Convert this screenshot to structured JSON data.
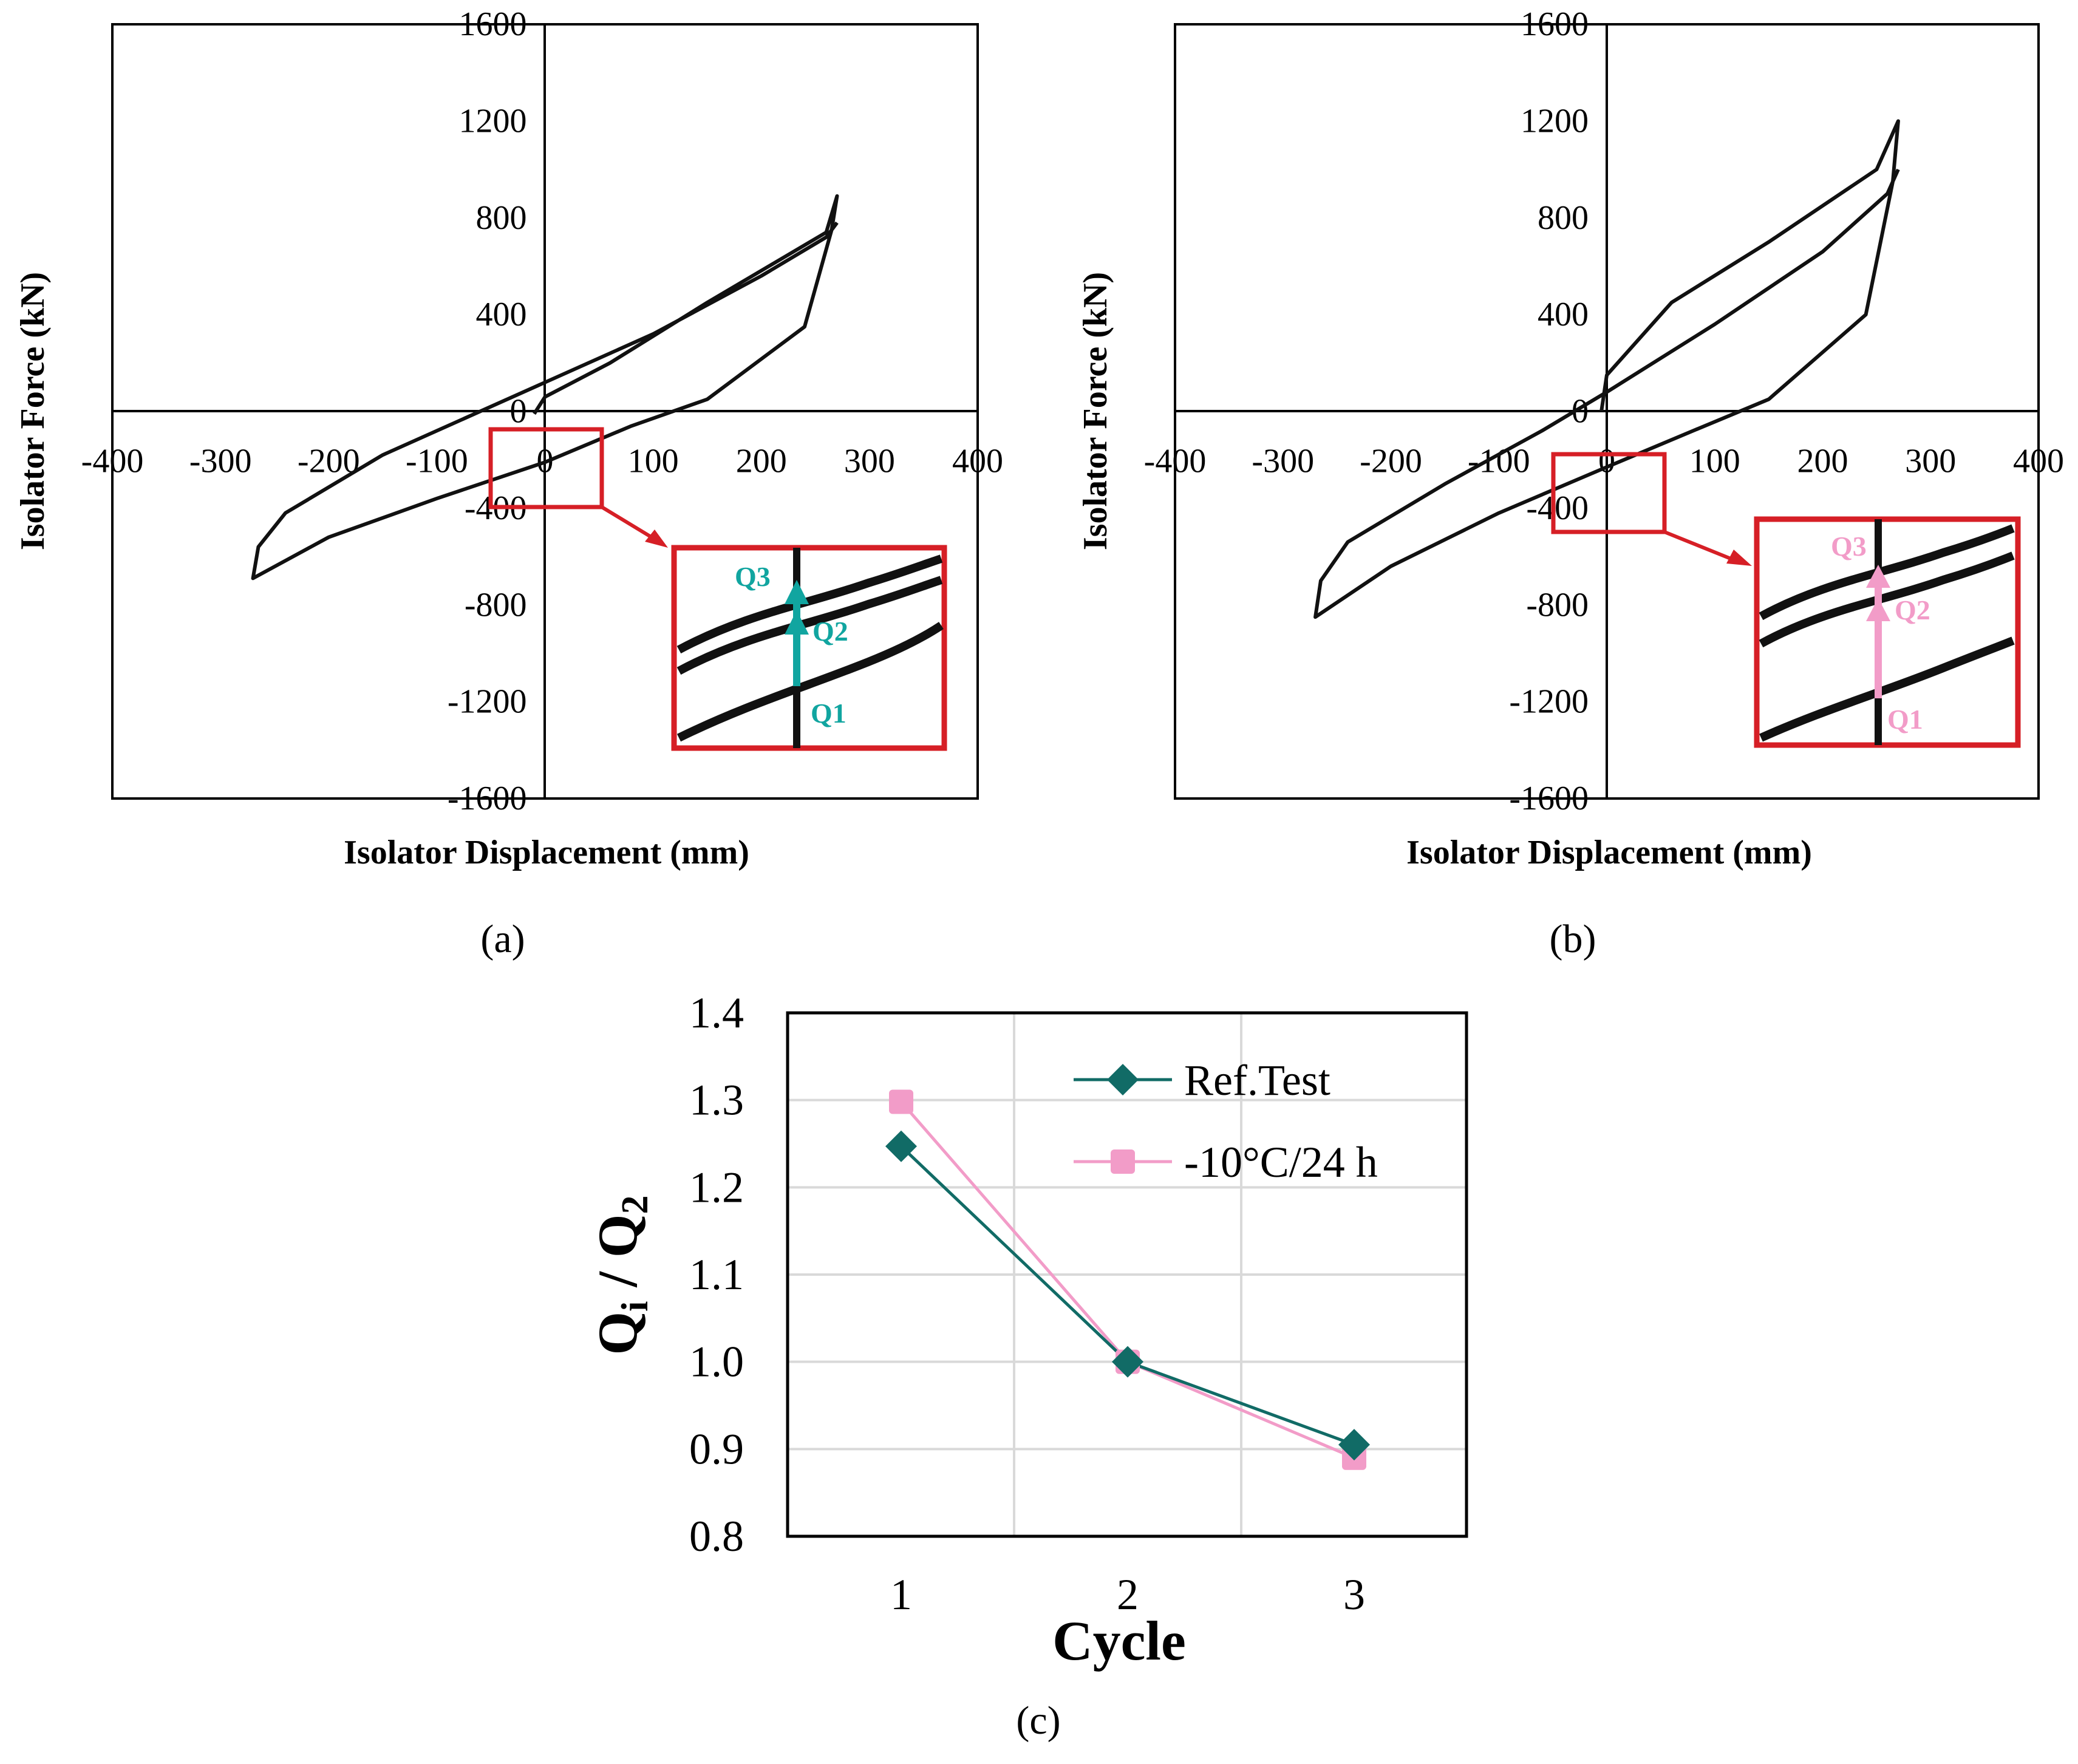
{
  "colors": {
    "ref_test": "#116b66",
    "cold_test": "#f29cc8",
    "inset_border": "#d61f26",
    "curve": "#111111"
  },
  "chart_data": [
    {
      "type": "line",
      "panel_label": "(a)",
      "title": "",
      "xlabel": "Isolator Displacement (mm)",
      "ylabel": "Isolator Force (kN)",
      "xlim": [
        -400,
        400
      ],
      "ylim": [
        -1600,
        1600
      ],
      "x_ticks": [
        "-400",
        "-300",
        "-200",
        "-100",
        "0",
        "100",
        "200",
        "300",
        "400"
      ],
      "y_ticks": [
        "1600",
        "1200",
        "800",
        "400",
        "0",
        "-400",
        "-800",
        "-1200",
        "-1600"
      ],
      "series": [
        {
          "name": "hysteresis loop",
          "x": [
            -10,
            0,
            60,
            150,
            260,
            270,
            265,
            240,
            150,
            80,
            0,
            -100,
            -200,
            -270,
            -265,
            -240,
            -150,
            -60,
            0,
            100,
            200,
            260,
            270
          ],
          "y": [
            -10,
            60,
            200,
            450,
            740,
            890,
            750,
            350,
            50,
            -60,
            -210,
            -360,
            -520,
            -690,
            -560,
            -420,
            -180,
            0,
            120,
            320,
            560,
            720,
            780
          ]
        }
      ],
      "inset_labels": [
        "Q3",
        "Q2",
        "Q1"
      ]
    },
    {
      "type": "line",
      "panel_label": "(b)",
      "title": "",
      "xlabel": "Isolator Displacement (mm)",
      "ylabel": "Isolator Force (kN)",
      "xlim": [
        -400,
        400
      ],
      "ylim": [
        -1600,
        1600
      ],
      "x_ticks": [
        "-400",
        "-300",
        "-200",
        "-100",
        "0",
        "100",
        "200",
        "300",
        "400"
      ],
      "y_ticks": [
        "1600",
        "1200",
        "800",
        "400",
        "0",
        "-400",
        "-800",
        "-1200",
        "-1600"
      ],
      "series": [
        {
          "name": "hysteresis loop",
          "x": [
            -5,
            0,
            60,
            150,
            250,
            270,
            265,
            240,
            150,
            80,
            0,
            -100,
            -200,
            -270,
            -265,
            -240,
            -150,
            -60,
            0,
            100,
            200,
            260,
            270
          ],
          "y": [
            0,
            150,
            450,
            700,
            1000,
            1200,
            950,
            400,
            50,
            -80,
            -230,
            -420,
            -640,
            -850,
            -700,
            -540,
            -300,
            -80,
            80,
            360,
            660,
            900,
            1000
          ]
        }
      ],
      "inset_labels": [
        "Q3",
        "Q2",
        "Q1"
      ]
    },
    {
      "type": "line",
      "panel_label": "(c)",
      "title": "",
      "xlabel": "Cycle",
      "ylabel": "Qi / Q2",
      "ylabel_main": "Q",
      "ylabel_sub1": "i",
      "ylabel_sep": " / Q",
      "ylabel_sub2": "2",
      "categories": [
        "1",
        "2",
        "3"
      ],
      "ylim": [
        0.8,
        1.4
      ],
      "y_ticks": [
        "1.4",
        "1.3",
        "1.2",
        "1.1",
        "1.0",
        "0.9",
        "0.8"
      ],
      "series": [
        {
          "name": "Ref.Test",
          "values": [
            1.247,
            1.0,
            0.905
          ]
        },
        {
          "name": "-10°C/24 h",
          "values": [
            1.298,
            1.0,
            0.89
          ]
        }
      ],
      "legend": "top-right"
    }
  ]
}
